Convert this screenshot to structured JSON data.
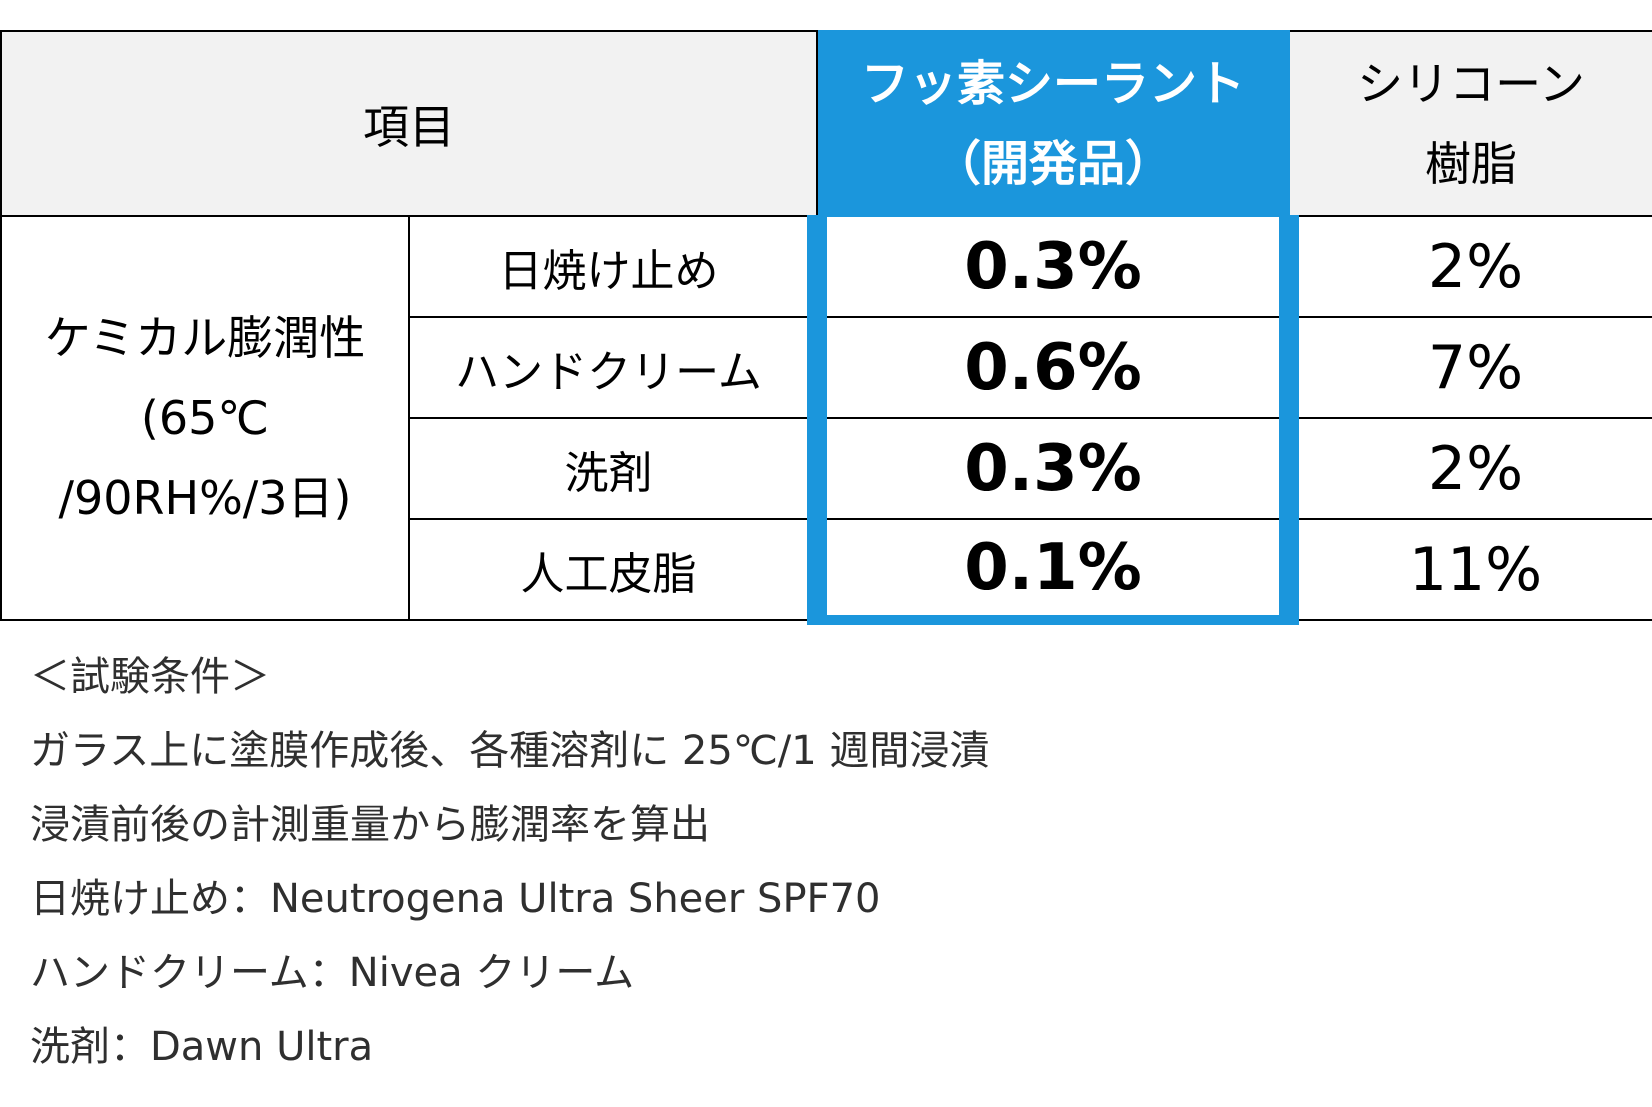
{
  "table": {
    "header": {
      "item": "項目",
      "fluoro_line1": "フッ素シーラント",
      "fluoro_line2": "（開発品）",
      "silicone_line1": "シリコーン",
      "silicone_line2": "樹脂"
    },
    "property": {
      "line1": "ケミカル膨潤性",
      "line2": "(65℃",
      "line3": "/90RH%/3日)"
    },
    "rows": [
      {
        "condition": "日焼け止め",
        "fluoro": "0.3%",
        "silicone": "2%"
      },
      {
        "condition": "ハンドクリーム",
        "fluoro": "0.6%",
        "silicone": "7%"
      },
      {
        "condition": "洗剤",
        "fluoro": "0.3%",
        "silicone": "2%"
      },
      {
        "condition": "人工皮脂",
        "fluoro": "0.1%",
        "silicone": "11%"
      }
    ]
  },
  "notes": [
    "＜試験条件＞",
    "ガラス上に塗膜作成後、各種溶剤に 25℃/1 週間浸漬",
    "浸漬前後の計測重量から膨潤率を算出",
    "日焼け止め：Neutrogena Ultra Sheer SPF70",
    "ハンドクリーム：Nivea クリーム",
    "洗剤：Dawn Ultra"
  ],
  "colors": {
    "accent": "#1b96dc",
    "header_bg": "#f2f2f2",
    "note_text": "#2f2f2f"
  }
}
